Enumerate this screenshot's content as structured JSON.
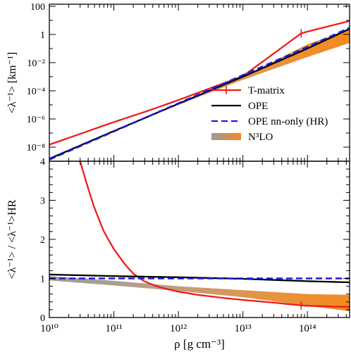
{
  "chart_data": [
    {
      "type": "line",
      "panel": "top",
      "ylabel": "<λ⁻¹> [km⁻¹]",
      "xlabel": "",
      "x_scale": "log",
      "y_scale": "log",
      "xlim": [
        10000000000.0,
        450000000000000.0
      ],
      "ylim": [
        1e-09,
        140
      ],
      "xticks": [
        10000000000.0,
        100000000000.0,
        1000000000000.0,
        10000000000000.0,
        100000000000000.0
      ],
      "xtick_labels": [
        "",
        "",
        "",
        "",
        ""
      ],
      "yticks": [
        1e-08,
        1e-06,
        0.0001,
        0.01,
        1,
        100
      ],
      "ytick_labels": [
        "10⁻⁸",
        "10⁻⁶",
        "10⁻⁴",
        "10⁻²",
        "1",
        "100"
      ],
      "legend": {
        "placement": "lower-right",
        "entries": [
          {
            "label": "T-matrix",
            "color": "#ee1c1c",
            "style": "solid-with-cross"
          },
          {
            "label": "OPE",
            "color": "#000000",
            "style": "solid"
          },
          {
            "label": "OPE nn-only (HR)",
            "color": "#1a1ae6",
            "style": "dashed"
          },
          {
            "label": "N³LO",
            "color": "#f5891f",
            "style": "band"
          }
        ]
      },
      "series": [
        {
          "name": "T-matrix",
          "color": "#ee1c1c",
          "style": "solid",
          "x": [
            10000000000.0,
            100000000000.0,
            350000000000.0,
            1000000000000.0,
            10000000000000.0,
            80000000000000.0,
            100000000000000.0,
            450000000000000.0
          ],
          "y": [
            1.5e-08,
            6e-07,
            4e-06,
            2.2e-05,
            0.0011,
            1.2,
            1.6,
            9
          ],
          "marker_x": 80000000000000.0,
          "marker_y": 1.2
        },
        {
          "name": "OPE",
          "color": "#000000",
          "style": "solid",
          "x": [
            10000000000.0,
            100000000000.0,
            1000000000000.0,
            10000000000000.0,
            100000000000000.0,
            450000000000000.0
          ],
          "y": [
            1.5e-09,
            1.4e-07,
            1.2e-05,
            0.001,
            0.1,
            2.5
          ]
        },
        {
          "name": "OPE nn-only (HR)",
          "color": "#1a1ae6",
          "style": "dashed",
          "x": [
            10000000000.0,
            100000000000.0,
            1000000000000.0,
            10000000000000.0,
            100000000000000.0,
            450000000000000.0
          ],
          "y": [
            1.3e-09,
            1.3e-07,
            1.3e-05,
            0.0013,
            0.13,
            3
          ]
        },
        {
          "name": "N³LO",
          "color": "#f5891f",
          "style": "band",
          "x": [
            10000000000.0,
            100000000000.0,
            1000000000000.0,
            10000000000000.0,
            100000000000000.0,
            450000000000000.0
          ],
          "y_low": [
            1.3e-09,
            1.2e-07,
            1e-05,
            0.0006,
            0.025,
            0.25
          ],
          "y_high": [
            1.4e-09,
            1.4e-07,
            1.3e-05,
            0.001,
            0.2,
            2.4
          ]
        }
      ]
    },
    {
      "type": "line",
      "panel": "bottom",
      "ylabel": "<λ⁻¹> / <λ⁻¹>HR",
      "xlabel": "ρ [g cm⁻³]",
      "x_scale": "log",
      "y_scale": "linear",
      "xlim": [
        10000000000.0,
        450000000000000.0
      ],
      "ylim": [
        0,
        4
      ],
      "xticks": [
        10000000000.0,
        100000000000.0,
        1000000000000.0,
        10000000000000.0,
        100000000000000.0
      ],
      "xtick_labels": [
        "10¹⁰",
        "10¹¹",
        "10¹²",
        "10¹³",
        "10¹⁴"
      ],
      "yticks": [
        0,
        1,
        2,
        3,
        4
      ],
      "ytick_labels": [
        "0",
        "1",
        "2",
        "3",
        "4"
      ],
      "series": [
        {
          "name": "T-matrix",
          "color": "#ee1c1c",
          "style": "solid",
          "x": [
            30000000000.0,
            40000000000.0,
            50000000000.0,
            70000000000.0,
            100000000000.0,
            150000000000.0,
            200000000000.0,
            300000000000.0,
            500000000000.0,
            1000000000000.0,
            2000000000000.0,
            5000000000000.0,
            10000000000000.0,
            30000000000000.0,
            80000000000000.0,
            100000000000000.0,
            450000000000000.0
          ],
          "y": [
            4.0,
            3.3,
            2.8,
            2.2,
            1.75,
            1.35,
            1.12,
            0.92,
            0.78,
            0.66,
            0.58,
            0.5,
            0.45,
            0.38,
            0.31,
            0.3,
            0.27
          ],
          "marker_x": 80000000000000.0,
          "marker_y": 0.31
        },
        {
          "name": "OPE",
          "color": "#000000",
          "style": "solid",
          "x": [
            10000000000.0,
            100000000000.0,
            1000000000000.0,
            10000000000000.0,
            100000000000000.0,
            450000000000000.0
          ],
          "y": [
            1.1,
            1.06,
            1.03,
            0.99,
            0.93,
            0.9
          ]
        },
        {
          "name": "OPE nn-only (HR)",
          "color": "#1a1ae6",
          "style": "dashed",
          "x": [
            10000000000.0,
            450000000000000.0
          ],
          "y": [
            1.0,
            1.0
          ]
        },
        {
          "name": "N³LO",
          "color": "#f5891f",
          "style": "band",
          "x": [
            10000000000.0,
            100000000000.0,
            1000000000000.0,
            10000000000000.0,
            100000000000000.0,
            450000000000000.0
          ],
          "y_low": [
            0.95,
            0.82,
            0.68,
            0.52,
            0.3,
            0.16
          ],
          "y_high": [
            1.06,
            0.94,
            0.8,
            0.7,
            0.6,
            0.58
          ]
        }
      ]
    }
  ]
}
